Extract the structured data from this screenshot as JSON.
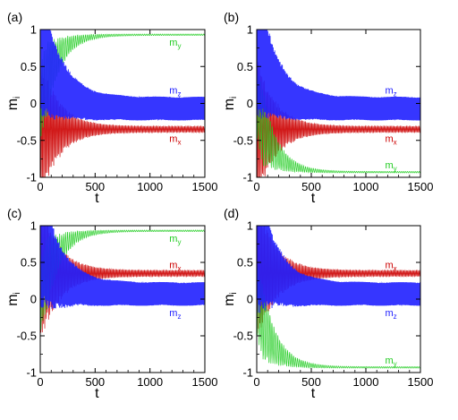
{
  "colors": {
    "mx": "#cc0000",
    "my": "#22cc22",
    "mz": "#2020ff",
    "axis": "#000000"
  },
  "chart_data": [
    {
      "type": "line",
      "panel_label": "(a)",
      "xlabel": "t",
      "ylabel": "m",
      "ylabel_sub": "i",
      "xlim": [
        0,
        1500
      ],
      "ylim": [
        -1,
        1
      ],
      "x_ticks": [
        "0",
        "500",
        "1000",
        "1500"
      ],
      "y_ticks": [
        "-1",
        "-0.5",
        "0",
        "0.5",
        "1"
      ],
      "series": [
        {
          "key": "mx",
          "label": "m",
          "sub": "x",
          "final_mean": -0.35,
          "final_amp": 0.04
        },
        {
          "key": "my",
          "label": "m",
          "sub": "y",
          "final_mean": 0.93,
          "final_amp": 0.01
        },
        {
          "key": "mz",
          "label": "m",
          "sub": "z",
          "final_mean": -0.07,
          "final_amp": 0.16
        }
      ]
    },
    {
      "type": "line",
      "panel_label": "(b)",
      "xlabel": "t",
      "ylabel": "m",
      "ylabel_sub": "i",
      "xlim": [
        0,
        1500
      ],
      "ylim": [
        -1,
        1
      ],
      "x_ticks": [
        "0",
        "500",
        "1000",
        "1500"
      ],
      "y_ticks": [
        "-1",
        "-0.5",
        "0",
        "0.5",
        "1"
      ],
      "series": [
        {
          "key": "mx",
          "label": "m",
          "sub": "x",
          "final_mean": -0.35,
          "final_amp": 0.04
        },
        {
          "key": "my",
          "label": "m",
          "sub": "y",
          "final_mean": -0.93,
          "final_amp": 0.01
        },
        {
          "key": "mz",
          "label": "m",
          "sub": "z",
          "final_mean": -0.07,
          "final_amp": 0.16
        }
      ]
    },
    {
      "type": "line",
      "panel_label": "(c)",
      "xlabel": "t",
      "ylabel": "m",
      "ylabel_sub": "i",
      "xlim": [
        0,
        1500
      ],
      "ylim": [
        -1,
        1
      ],
      "x_ticks": [
        "0",
        "500",
        "1000",
        "1500"
      ],
      "y_ticks": [
        "-1",
        "-0.5",
        "0",
        "0.5",
        "1"
      ],
      "series": [
        {
          "key": "mx",
          "label": "m",
          "sub": "x",
          "final_mean": 0.35,
          "final_amp": 0.04
        },
        {
          "key": "my",
          "label": "m",
          "sub": "y",
          "final_mean": 0.93,
          "final_amp": 0.01
        },
        {
          "key": "mz",
          "label": "m",
          "sub": "z",
          "final_mean": 0.07,
          "final_amp": 0.16
        }
      ]
    },
    {
      "type": "line",
      "panel_label": "(d)",
      "xlabel": "t",
      "ylabel": "m",
      "ylabel_sub": "i",
      "xlim": [
        0,
        1500
      ],
      "ylim": [
        -1,
        1
      ],
      "x_ticks": [
        "0",
        "500",
        "1000",
        "1500"
      ],
      "y_ticks": [
        "-1",
        "-0.5",
        "0",
        "0.5",
        "1"
      ],
      "series": [
        {
          "key": "mx",
          "label": "m",
          "sub": "x",
          "final_mean": 0.35,
          "final_amp": 0.04
        },
        {
          "key": "my",
          "label": "m",
          "sub": "y",
          "final_mean": -0.93,
          "final_amp": 0.01
        },
        {
          "key": "mz",
          "label": "m",
          "sub": "z",
          "final_mean": 0.07,
          "final_amp": 0.16
        }
      ]
    }
  ]
}
